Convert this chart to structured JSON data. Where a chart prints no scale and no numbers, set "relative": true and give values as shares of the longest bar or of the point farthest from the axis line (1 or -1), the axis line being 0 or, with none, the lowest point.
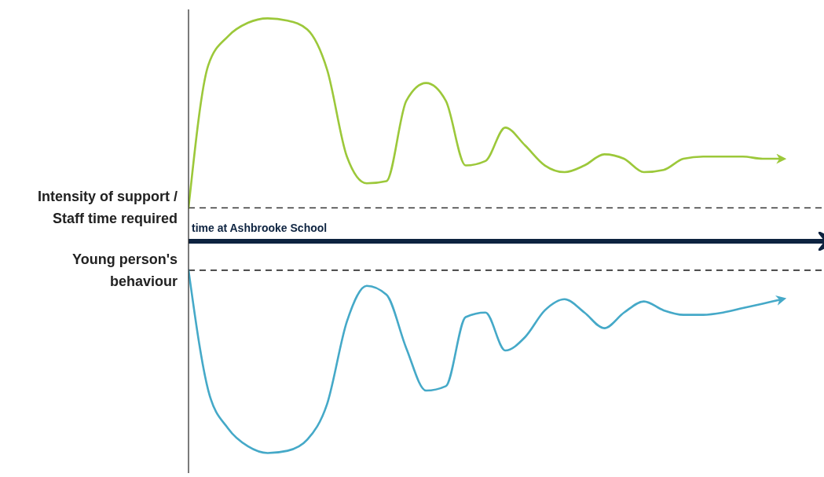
{
  "chart_data": {
    "type": "line",
    "relative": true,
    "xlabel": "time at Ashbrooke School",
    "categories": [
      null,
      null,
      null,
      null,
      null,
      null,
      null,
      null,
      null,
      null,
      null,
      null,
      null,
      null,
      null,
      null,
      null,
      null,
      null,
      null,
      null,
      null,
      null,
      null,
      null,
      null,
      null,
      null,
      null,
      null,
      null
    ],
    "series": [
      {
        "color": "#9cc83a",
        "values": [
          0.15,
          0.79,
          0.92,
          0.98,
          1,
          0.99,
          0.95,
          0.77,
          0.38,
          0.26,
          0.27,
          0.63,
          0.71,
          0.63,
          0.34,
          0.36,
          0.51,
          0.43,
          0.34,
          0.31,
          0.34,
          0.39,
          0.37,
          0.31,
          0.32,
          0.37,
          0.38,
          0.38,
          0.38,
          0.37,
          0.37
        ]
      },
      {
        "color": "#45a9c8",
        "values": [
          -0.13,
          -0.67,
          -0.84,
          -0.92,
          -0.95,
          -0.94,
          -0.89,
          -0.73,
          -0.36,
          -0.2,
          -0.24,
          -0.48,
          -0.67,
          -0.65,
          -0.34,
          -0.32,
          -0.49,
          -0.43,
          -0.31,
          -0.26,
          -0.32,
          -0.39,
          -0.32,
          -0.27,
          -0.31,
          -0.33,
          -0.33,
          -0.32,
          -0.3,
          -0.28,
          -0.26
        ]
      }
    ],
    "ref_lines": [
      {
        "axis": "y",
        "value": 0.15,
        "label": "Intensity of support / Staff time required",
        "color": "#333333",
        "line_style": "dashed"
      },
      {
        "axis": "y",
        "value": -0.13,
        "label": "Young person's behaviour",
        "color": "#333333",
        "line_style": "dashed"
      }
    ],
    "grid": false,
    "legend": false,
    "marker": "none",
    "line_style": "solid"
  }
}
